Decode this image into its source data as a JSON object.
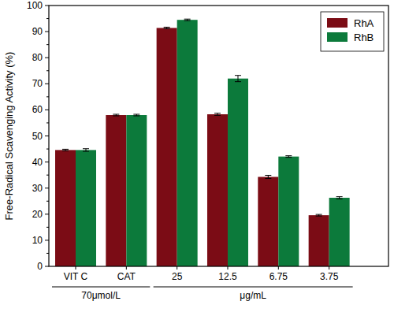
{
  "chart_data": {
    "type": "bar",
    "y_label": "Free-Radical Scavenging Activity (%)",
    "categories": [
      "VIT C",
      "CAT",
      "25",
      "12.5",
      "6.75",
      "3.75"
    ],
    "category_groups": [
      {
        "label": "70μmol/L",
        "count": 2
      },
      {
        "label": "μg/mL",
        "count": 4
      }
    ],
    "series": [
      {
        "name": "RhA",
        "color": "#7b0c15",
        "values": [
          44.6,
          58.0,
          91.4,
          58.3,
          34.3,
          19.6
        ],
        "errors": [
          0.3,
          0.3,
          0.3,
          0.4,
          0.6,
          0.3
        ]
      },
      {
        "name": "RhB",
        "color": "#0c7a3b",
        "values": [
          44.6,
          58.0,
          94.5,
          72.0,
          42.1,
          26.3
        ],
        "errors": [
          0.5,
          0.3,
          0.3,
          1.2,
          0.3,
          0.4
        ]
      }
    ],
    "ylim": [
      0,
      100
    ],
    "yticks": [
      0,
      10,
      20,
      30,
      40,
      50,
      60,
      70,
      80,
      90,
      100
    ],
    "legend": "top-right"
  }
}
